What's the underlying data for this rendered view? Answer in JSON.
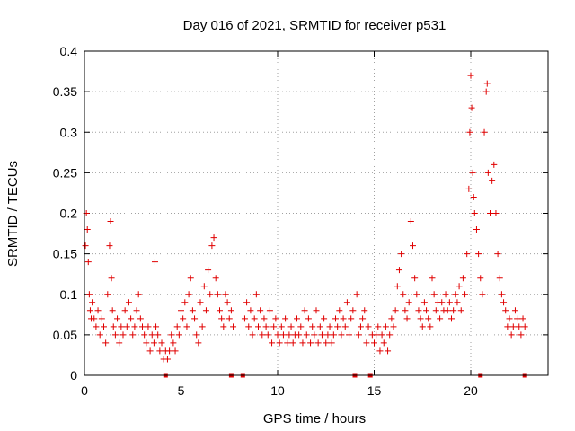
{
  "chart_data": {
    "type": "scatter",
    "title": "Day 016 of 2021, SRMTID for receiver p531",
    "xlabel": "GPS time / hours",
    "ylabel": "SRMTID / TECUs",
    "xlim": [
      0,
      24
    ],
    "ylim": [
      0,
      0.4
    ],
    "x_ticks": [
      0,
      5,
      10,
      15,
      20
    ],
    "x_tick_labels": [
      "0",
      "5",
      "10",
      "15",
      "20"
    ],
    "y_ticks": [
      0,
      0.05,
      0.1,
      0.15,
      0.2,
      0.25,
      0.3,
      0.35,
      0.4
    ],
    "y_tick_labels": [
      "0",
      "0.05",
      "0.1",
      "0.15",
      "0.2",
      "0.25",
      "0.3",
      "0.35",
      "0.4"
    ],
    "grid": true,
    "marker": "+",
    "color": "#e00000",
    "gap_markers_x": [
      4.2,
      7.6,
      8.2,
      14.0,
      14.8,
      20.5,
      22.8
    ],
    "series": [
      {
        "name": "SRMTID",
        "x": [
          0.05,
          0.1,
          0.15,
          0.2,
          0.25,
          0.3,
          0.35,
          0.4,
          0.5,
          0.6,
          0.7,
          0.8,
          0.9,
          1.0,
          1.1,
          1.2,
          1.3,
          1.35,
          1.4,
          1.45,
          1.5,
          1.6,
          1.7,
          1.8,
          1.9,
          2.0,
          2.1,
          2.2,
          2.3,
          2.4,
          2.5,
          2.6,
          2.7,
          2.8,
          2.9,
          3.0,
          3.1,
          3.2,
          3.3,
          3.4,
          3.5,
          3.6,
          3.65,
          3.7,
          3.8,
          3.9,
          4.0,
          4.1,
          4.2,
          4.3,
          4.4,
          4.5,
          4.6,
          4.7,
          4.8,
          4.9,
          5.0,
          5.1,
          5.2,
          5.3,
          5.4,
          5.5,
          5.6,
          5.7,
          5.8,
          5.9,
          6.0,
          6.1,
          6.2,
          6.3,
          6.4,
          6.5,
          6.6,
          6.7,
          6.8,
          6.9,
          7.0,
          7.1,
          7.2,
          7.3,
          7.4,
          7.5,
          7.6,
          7.7,
          8.3,
          8.4,
          8.5,
          8.6,
          8.7,
          8.8,
          8.9,
          9.0,
          9.1,
          9.2,
          9.3,
          9.4,
          9.5,
          9.6,
          9.7,
          9.8,
          9.9,
          10.0,
          10.1,
          10.2,
          10.3,
          10.4,
          10.5,
          10.6,
          10.7,
          10.8,
          10.9,
          11.0,
          11.1,
          11.2,
          11.3,
          11.4,
          11.5,
          11.6,
          11.7,
          11.8,
          11.9,
          12.0,
          12.1,
          12.2,
          12.3,
          12.4,
          12.5,
          12.6,
          12.7,
          12.8,
          12.9,
          13.0,
          13.1,
          13.2,
          13.3,
          13.4,
          13.5,
          13.6,
          13.7,
          13.8,
          13.9,
          14.1,
          14.2,
          14.3,
          14.4,
          14.5,
          14.6,
          14.7,
          14.9,
          15.0,
          15.1,
          15.2,
          15.3,
          15.4,
          15.5,
          15.6,
          15.7,
          15.8,
          15.9,
          16.0,
          16.1,
          16.2,
          16.3,
          16.4,
          16.5,
          16.6,
          16.7,
          16.8,
          16.9,
          17.0,
          17.1,
          17.2,
          17.3,
          17.4,
          17.5,
          17.6,
          17.7,
          17.8,
          17.9,
          18.0,
          18.1,
          18.2,
          18.3,
          18.4,
          18.5,
          18.6,
          18.7,
          18.8,
          18.9,
          19.0,
          19.1,
          19.2,
          19.3,
          19.4,
          19.5,
          19.6,
          19.7,
          19.8,
          19.9,
          19.95,
          20.0,
          20.05,
          20.1,
          20.15,
          20.2,
          20.3,
          20.4,
          20.5,
          20.6,
          20.7,
          20.8,
          20.85,
          20.9,
          21.0,
          21.1,
          21.2,
          21.3,
          21.4,
          21.5,
          21.6,
          21.7,
          21.8,
          21.9,
          22.0,
          22.1,
          22.2,
          22.3,
          22.4,
          22.5,
          22.6,
          22.7,
          22.8
        ],
        "y": [
          0.16,
          0.2,
          0.18,
          0.14,
          0.1,
          0.08,
          0.07,
          0.09,
          0.07,
          0.06,
          0.08,
          0.05,
          0.07,
          0.06,
          0.04,
          0.1,
          0.16,
          0.19,
          0.12,
          0.08,
          0.06,
          0.05,
          0.07,
          0.04,
          0.06,
          0.05,
          0.08,
          0.06,
          0.09,
          0.07,
          0.05,
          0.06,
          0.08,
          0.1,
          0.07,
          0.06,
          0.05,
          0.04,
          0.06,
          0.03,
          0.05,
          0.04,
          0.14,
          0.06,
          0.05,
          0.03,
          0.04,
          0.02,
          0.03,
          0.02,
          0.03,
          0.05,
          0.04,
          0.03,
          0.06,
          0.05,
          0.08,
          0.07,
          0.09,
          0.06,
          0.1,
          0.12,
          0.08,
          0.07,
          0.05,
          0.04,
          0.09,
          0.06,
          0.11,
          0.08,
          0.13,
          0.1,
          0.16,
          0.17,
          0.12,
          0.1,
          0.08,
          0.07,
          0.06,
          0.1,
          0.09,
          0.07,
          0.08,
          0.06,
          0.07,
          0.09,
          0.06,
          0.08,
          0.05,
          0.07,
          0.1,
          0.06,
          0.08,
          0.05,
          0.07,
          0.06,
          0.05,
          0.08,
          0.04,
          0.06,
          0.07,
          0.05,
          0.04,
          0.06,
          0.05,
          0.07,
          0.04,
          0.05,
          0.06,
          0.04,
          0.05,
          0.07,
          0.05,
          0.06,
          0.04,
          0.08,
          0.05,
          0.07,
          0.04,
          0.06,
          0.05,
          0.08,
          0.04,
          0.06,
          0.05,
          0.07,
          0.04,
          0.05,
          0.06,
          0.04,
          0.05,
          0.07,
          0.06,
          0.08,
          0.05,
          0.07,
          0.06,
          0.09,
          0.05,
          0.07,
          0.08,
          0.1,
          0.05,
          0.06,
          0.07,
          0.08,
          0.04,
          0.06,
          0.05,
          0.04,
          0.05,
          0.06,
          0.03,
          0.05,
          0.04,
          0.06,
          0.03,
          0.05,
          0.07,
          0.06,
          0.08,
          0.11,
          0.13,
          0.15,
          0.1,
          0.08,
          0.07,
          0.09,
          0.19,
          0.16,
          0.12,
          0.1,
          0.08,
          0.07,
          0.06,
          0.09,
          0.08,
          0.07,
          0.06,
          0.12,
          0.1,
          0.08,
          0.09,
          0.07,
          0.09,
          0.08,
          0.1,
          0.08,
          0.09,
          0.07,
          0.08,
          0.1,
          0.09,
          0.11,
          0.08,
          0.12,
          0.1,
          0.15,
          0.23,
          0.3,
          0.37,
          0.33,
          0.25,
          0.22,
          0.2,
          0.18,
          0.15,
          0.12,
          0.1,
          0.3,
          0.35,
          0.36,
          0.25,
          0.2,
          0.24,
          0.26,
          0.2,
          0.15,
          0.12,
          0.1,
          0.09,
          0.08,
          0.06,
          0.07,
          0.05,
          0.06,
          0.08,
          0.07,
          0.06,
          0.05,
          0.07,
          0.06
        ]
      }
    ]
  }
}
